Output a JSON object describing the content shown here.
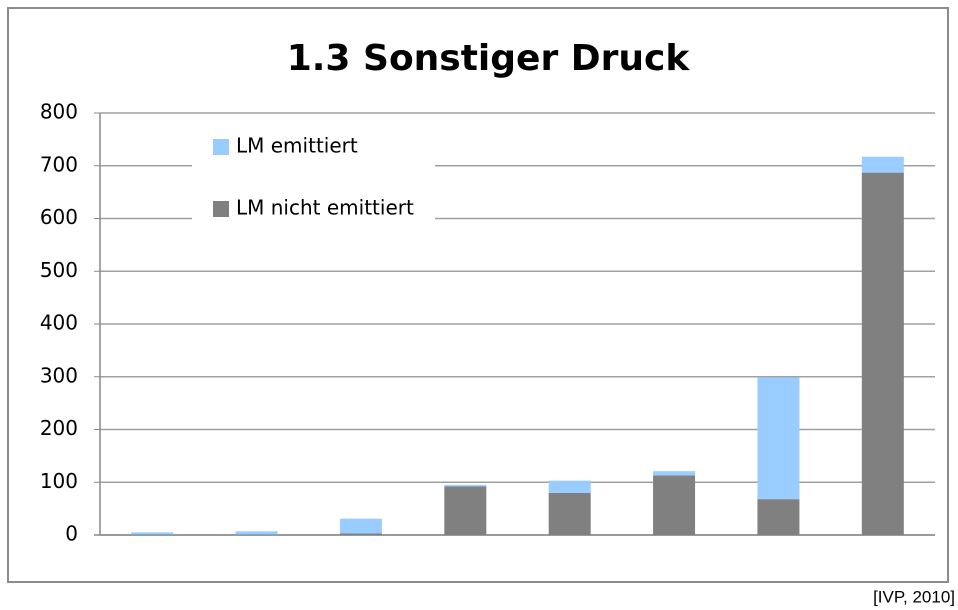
{
  "chart_data": {
    "type": "stacked_bar",
    "title": "1.3 Sonstiger Druck",
    "categories": [
      null,
      null,
      null,
      null,
      null,
      null,
      null,
      null
    ],
    "series": [
      {
        "name": "LM nicht emittiert",
        "color": "#808080",
        "values": [
          1,
          1,
          3,
          92,
          80,
          113,
          68,
          687
        ]
      },
      {
        "name": "LM emittiert",
        "color": "#99ccff",
        "values": [
          4,
          6,
          28,
          3,
          23,
          8,
          231,
          30
        ]
      }
    ],
    "ylim": [
      0,
      800
    ],
    "yticks": [
      0,
      100,
      200,
      300,
      400,
      500,
      600,
      700,
      800
    ],
    "grid": true,
    "source": "[IVP, 2010]"
  }
}
